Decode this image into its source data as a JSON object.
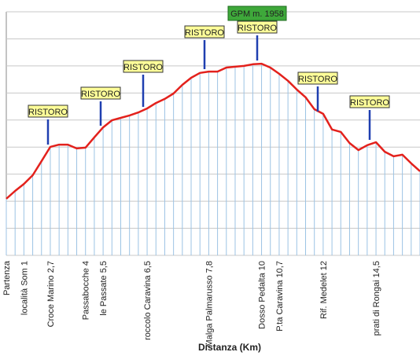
{
  "chart_data": {
    "type": "line",
    "x_label": "Distanza (Km)",
    "categories": [
      "Partenza",
      null,
      "località Som   1",
      null,
      null,
      "Croce Marino   2,7",
      null,
      null,
      null,
      "Passabocche   4",
      null,
      "le Passate   5,5",
      null,
      null,
      null,
      null,
      "roccolo Caravina   6,5",
      null,
      null,
      null,
      null,
      null,
      null,
      "Malga Palmarusso 7,8",
      null,
      null,
      null,
      null,
      null,
      "Dosso Pedalta   10",
      null,
      "P.ta Caravina   10,7",
      null,
      null,
      null,
      null,
      "Rif. Medelet   12",
      null,
      null,
      null,
      null,
      null,
      "prati di Rongai   14,5",
      null,
      null,
      null,
      null,
      null
    ],
    "values": [
      1459,
      1488,
      1514,
      1546,
      1598,
      1651,
      1659,
      1659,
      1645,
      1648,
      1686,
      1723,
      1749,
      1758,
      1767,
      1778,
      1793,
      1813,
      1828,
      1848,
      1880,
      1906,
      1924,
      1929,
      1929,
      1944,
      1947,
      1950,
      1956,
      1958,
      1944,
      1921,
      1895,
      1863,
      1834,
      1790,
      1773,
      1715,
      1706,
      1665,
      1639,
      1657,
      1668,
      1633,
      1616,
      1622,
      1590,
      1561
    ],
    "color": "#e3211c",
    "ylim": [
      1250,
      2150
    ],
    "yticks": [
      1250,
      1350,
      1450,
      1550,
      1650,
      1750,
      1850,
      1950,
      2050,
      2150
    ],
    "grid": true,
    "annotations": [
      "RISTORO",
      "RISTORO",
      "RISTORO",
      "RISTORO",
      "RISTORO",
      "RISTORO",
      "RISTORO"
    ],
    "peak_label": "GPM m. 1958"
  }
}
